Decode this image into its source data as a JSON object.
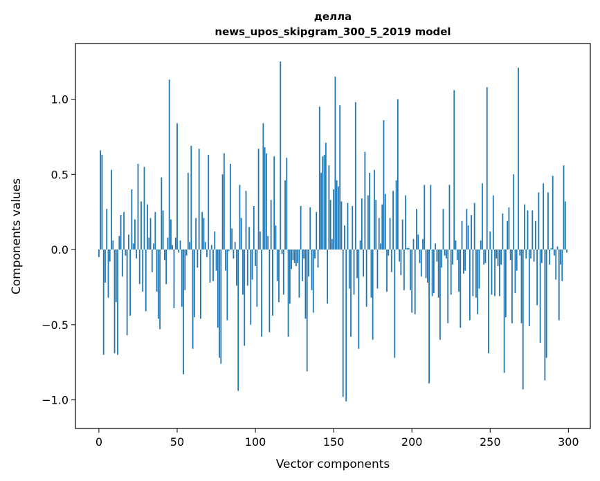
{
  "chart_data": {
    "type": "bar",
    "title_line1": "делла",
    "title_line2": "news_upos_skipgram_300_5_2019 model",
    "xlabel": "Vector components",
    "ylabel": "Components values",
    "xlim": [
      -15,
      314
    ],
    "ylim": [
      -1.19,
      1.37
    ],
    "xticks": [
      0,
      50,
      100,
      150,
      200,
      250,
      300
    ],
    "yticks": [
      -1.0,
      -0.5,
      0.0,
      0.5,
      1.0
    ],
    "ytick_labels": [
      "−1.0",
      "−0.5",
      "0.0",
      "0.5",
      "1.0"
    ],
    "bar_color": "#1f77b4",
    "grid": false,
    "values": [
      -0.05,
      0.66,
      0.63,
      -0.7,
      -0.22,
      0.27,
      -0.32,
      -0.08,
      0.53,
      0.06,
      -0.69,
      -0.35,
      -0.7,
      0.09,
      0.23,
      -0.18,
      0.25,
      -0.04,
      -0.57,
      0.1,
      -0.44,
      0.4,
      0.04,
      0.2,
      -0.06,
      0.57,
      -0.23,
      0.32,
      -0.28,
      0.55,
      -0.41,
      0.3,
      0.08,
      0.21,
      -0.15,
      0.04,
      0.25,
      -0.28,
      -0.46,
      -0.53,
      0.48,
      0.26,
      -0.07,
      -0.23,
      0.08,
      1.13,
      0.2,
      0.03,
      -0.39,
      0.08,
      0.84,
      -0.02,
      0.06,
      -0.38,
      -0.83,
      -0.27,
      -0.04,
      0.51,
      0.05,
      0.69,
      -0.66,
      -0.45,
      0.21,
      -0.12,
      0.67,
      -0.46,
      0.25,
      0.21,
      0.05,
      -0.05,
      0.63,
      -0.22,
      0.03,
      -0.21,
      0.12,
      -0.14,
      -0.52,
      -0.72,
      -0.76,
      0.5,
      0.64,
      -0.14,
      -0.47,
      -0.01,
      0.57,
      0.14,
      -0.06,
      0.05,
      -0.24,
      -0.94,
      0.43,
      0.21,
      -0.3,
      -0.64,
      0.39,
      -0.24,
      0.15,
      -0.5,
      -0.2,
      0.29,
      -0.11,
      -0.38,
      0.67,
      0.12,
      -0.58,
      0.84,
      0.68,
      0.64,
      0.09,
      -0.55,
      0.33,
      -0.44,
      0.62,
      0.16,
      -0.21,
      -0.35,
      1.25,
      -0.03,
      -0.3,
      0.46,
      0.61,
      -0.58,
      -0.36,
      -0.13,
      -0.07,
      -0.09,
      -0.11,
      -0.09,
      -0.32,
      0.29,
      -0.21,
      -0.06,
      -0.46,
      -0.81,
      -0.18,
      0.28,
      -0.27,
      -0.42,
      -0.06,
      0.25,
      -0.12,
      0.95,
      0.51,
      0.62,
      0.63,
      0.71,
      -0.36,
      0.56,
      0.33,
      0.07,
      0.4,
      1.15,
      0.46,
      0.42,
      0.96,
      0.32,
      -0.98,
      0.16,
      -1.01,
      0.31,
      -0.26,
      -0.58,
      0.29,
      -0.3,
      0.98,
      -0.19,
      -0.66,
      0.06,
      0.34,
      -0.18,
      0.65,
      -0.38,
      0.36,
      0.51,
      -0.32,
      -0.6,
      0.53,
      0.33,
      -0.26,
      0.21,
      0.04,
      0.3,
      0.86,
      0.37,
      -0.28,
      -0.04,
      0.21,
      -0.15,
      0.39,
      -0.72,
      0.46,
      1.0,
      -0.08,
      -0.17,
      0.2,
      -0.27,
      0.36,
      0.01,
      0.01,
      -0.27,
      -0.42,
      0.07,
      -0.43,
      0.27,
      0.1,
      -0.09,
      -0.18,
      0.07,
      0.43,
      -0.19,
      -0.22,
      -0.89,
      0.43,
      -0.31,
      -0.29,
      0.04,
      -0.08,
      -0.32,
      -0.6,
      -0.12,
      0.27,
      -0.04,
      -0.06,
      -0.49,
      0.43,
      -0.3,
      -0.1,
      1.06,
      0.06,
      -0.07,
      -0.28,
      -0.52,
      0.19,
      -0.16,
      -0.14,
      0.27,
      0.16,
      -0.47,
      0.23,
      -0.31,
      0.31,
      -0.32,
      -0.43,
      -0.26,
      0.06,
      0.44,
      -0.1,
      -0.09,
      1.08,
      -0.69,
      0.12,
      -0.3,
      0.36,
      -0.31,
      -0.06,
      -0.11,
      -0.31,
      -0.1,
      0.24,
      -0.82,
      -0.45,
      0.19,
      0.28,
      -0.07,
      -0.49,
      0.5,
      -0.29,
      -0.14,
      1.21,
      -0.04,
      -0.49,
      -0.93,
      0.3,
      -0.06,
      0.26,
      -0.51,
      -0.06,
      0.26,
      -0.08,
      0.19,
      -0.37,
      0.38,
      -0.62,
      -0.09,
      0.44,
      -0.87,
      -0.72,
      0.38,
      -0.1,
      0.01,
      0.49,
      -0.04,
      -0.2,
      0.02,
      -0.47,
      -0.1,
      -0.21,
      0.56,
      0.32,
      -0.02
    ]
  }
}
